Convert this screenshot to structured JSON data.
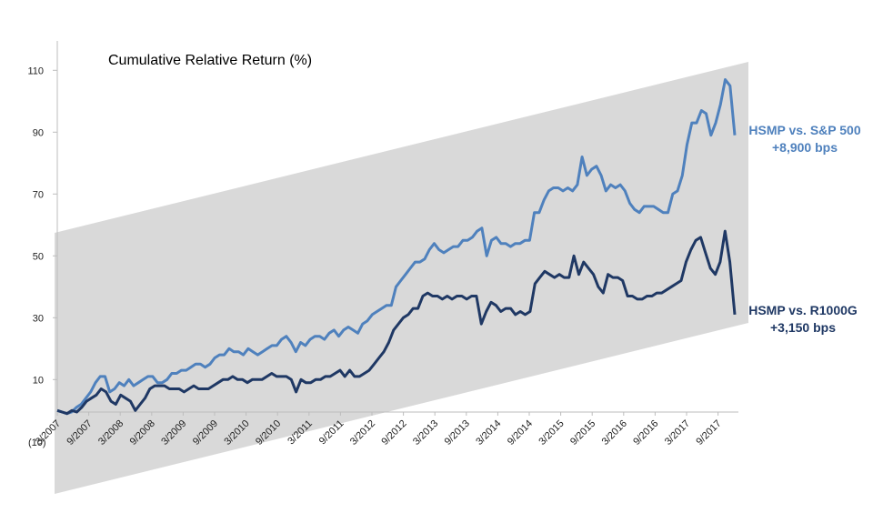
{
  "chart_data": {
    "type": "line",
    "title": "Cumulative Relative Return (%)",
    "xlabel": "",
    "ylabel": "",
    "ylim": [
      -10,
      120
    ],
    "yticks": [
      110,
      90,
      70,
      50,
      30,
      10
    ],
    "y_min_label": "(10)",
    "grid": false,
    "legend": "none",
    "x_tick_labels": [
      "3/2007",
      "9/2007",
      "3/2008",
      "9/2008",
      "3/2009",
      "9/2009",
      "3/2010",
      "9/2010",
      "3/2011",
      "9/2011",
      "3/2012",
      "9/2012",
      "3/2013",
      "9/2013",
      "3/2014",
      "9/2014",
      "3/2015",
      "9/2015",
      "3/2016",
      "9/2016",
      "3/2017",
      "9/2017"
    ],
    "band_color": "#d9d9d9",
    "series": [
      {
        "name": "HSMP vs. S&P 500",
        "annotation": "+8,900 bps",
        "color": "#4f81bd",
        "values": [
          0,
          -0.5,
          -1,
          -0.5,
          1,
          2,
          4,
          6,
          9,
          11,
          11,
          6,
          7,
          9,
          8,
          10,
          8,
          9,
          10,
          11,
          11,
          9,
          9,
          10,
          12,
          12,
          13,
          13,
          14,
          15,
          15,
          14,
          15,
          17,
          18,
          18,
          20,
          19,
          19,
          18,
          20,
          19,
          18,
          19,
          20,
          21,
          21,
          23,
          24,
          22,
          19,
          22,
          21,
          23,
          24,
          24,
          23,
          25,
          26,
          24,
          26,
          27,
          26,
          25,
          28,
          29,
          31,
          32,
          33,
          34,
          34,
          40,
          42,
          44,
          46,
          48,
          48,
          49,
          52,
          54,
          52,
          51,
          52,
          53,
          53,
          55,
          55,
          56,
          58,
          59,
          50,
          55,
          56,
          54,
          54,
          53,
          54,
          54,
          55,
          55,
          64,
          64,
          68,
          71,
          72,
          72,
          71,
          72,
          71,
          73,
          82,
          76,
          78,
          79,
          76,
          71,
          73,
          72,
          73,
          71,
          67,
          65,
          64,
          66,
          66,
          66,
          65,
          64,
          64,
          70,
          71,
          76,
          86,
          93,
          93,
          97,
          96,
          89,
          93,
          99,
          107,
          105,
          89
        ]
      },
      {
        "name": "HSMP vs. R1000G",
        "annotation": "+3,150 bps",
        "color": "#1f3864",
        "values": [
          0,
          -0.5,
          -1,
          0,
          -0.5,
          1,
          3,
          4,
          5,
          7,
          6,
          3,
          2,
          5,
          4,
          3,
          0,
          2,
          4,
          7,
          8,
          8,
          8,
          7,
          7,
          7,
          6,
          7,
          8,
          7,
          7,
          7,
          8,
          9,
          10,
          10,
          11,
          10,
          10,
          9,
          10,
          10,
          10,
          11,
          12,
          11,
          11,
          11,
          10,
          6,
          10,
          9,
          9,
          10,
          10,
          11,
          11,
          12,
          13,
          11,
          13,
          11,
          11,
          12,
          13,
          15,
          17,
          19,
          22,
          26,
          28,
          30,
          31,
          33,
          33,
          37,
          38,
          37,
          37,
          36,
          37,
          36,
          37,
          37,
          36,
          37,
          37,
          28,
          32,
          35,
          34,
          32,
          33,
          33,
          31,
          32,
          31,
          32,
          41,
          43,
          45,
          44,
          43,
          44,
          43,
          43,
          50,
          44,
          48,
          46,
          44,
          40,
          38,
          44,
          43,
          43,
          42,
          37,
          37,
          36,
          36,
          37,
          37,
          38,
          38,
          39,
          40,
          41,
          42,
          48,
          52,
          55,
          56,
          51,
          46,
          44,
          48,
          58,
          48,
          31
        ]
      }
    ]
  }
}
